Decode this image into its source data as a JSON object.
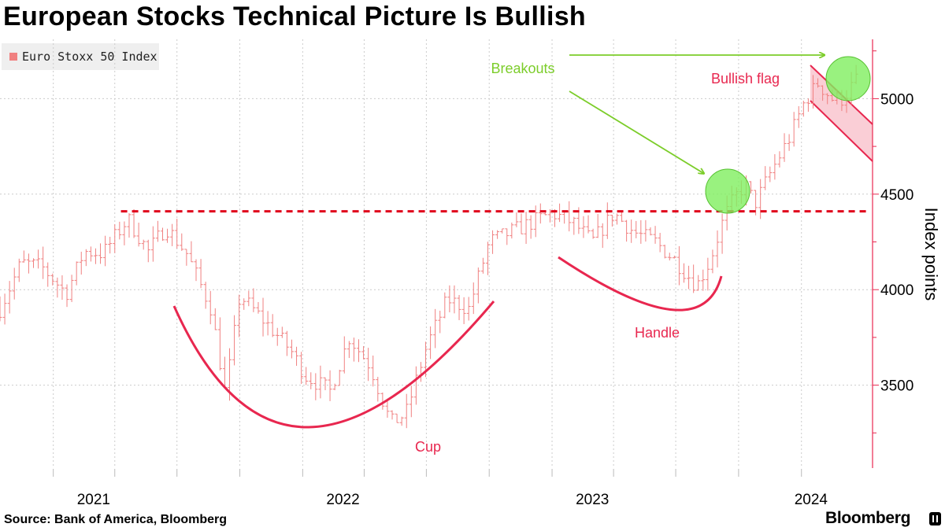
{
  "title": "European Stocks Technical Picture Is Bullish",
  "source": "Source: Bank of America, Bloomberg",
  "brand": "Bloomberg",
  "colors": {
    "bars": "#f08080",
    "pattern": "#e8274f",
    "breakout": "#7ccd2a",
    "circle_fill": "#7fef5f",
    "flag_fill": "#f9c5cf",
    "grid": "#cccccc"
  },
  "chart_data": {
    "type": "bar",
    "style": "ohlc",
    "series": [
      {
        "name": "Euro Stoxx 50 Index"
      }
    ],
    "ylabel": "Index points",
    "ylim": [
      3080,
      5310
    ],
    "yticks": [
      3500,
      4000,
      4500,
      5000
    ],
    "xticks": [
      "2021",
      "2022",
      "2023",
      "2024"
    ],
    "x_range": [
      "2020-10-15",
      "2024-03-22"
    ],
    "grid": "vertical dotted",
    "legend_position": "top-left",
    "price_points": [
      [
        "2020-10-15",
        3900
      ],
      [
        "2020-11-15",
        4140
      ],
      [
        "2020-12-15",
        4120
      ],
      [
        "2021-01-20",
        3980
      ],
      [
        "2021-02-15",
        4200
      ],
      [
        "2021-03-15",
        4190
      ],
      [
        "2021-04-20",
        4370
      ],
      [
        "2021-05-20",
        4200
      ],
      [
        "2021-06-15",
        4330
      ],
      [
        "2021-07-15",
        4190
      ],
      [
        "2021-08-20",
        3900
      ],
      [
        "2021-09-10",
        3450
      ],
      [
        "2021-10-01",
        3970
      ],
      [
        "2021-11-15",
        3800
      ],
      [
        "2021-12-15",
        3680
      ],
      [
        "2022-01-05",
        3550
      ],
      [
        "2022-02-10",
        3470
      ],
      [
        "2022-03-10",
        3750
      ],
      [
        "2022-04-10",
        3600
      ],
      [
        "2022-05-10",
        3300
      ],
      [
        "2022-06-01",
        3350
      ],
      [
        "2022-07-01",
        3700
      ],
      [
        "2022-08-01",
        3950
      ],
      [
        "2022-09-01",
        3900
      ],
      [
        "2022-10-01",
        4250
      ],
      [
        "2022-11-01",
        4300
      ],
      [
        "2022-12-01",
        4350
      ],
      [
        "2023-01-01",
        4400
      ],
      [
        "2023-02-01",
        4350
      ],
      [
        "2023-03-01",
        4250
      ],
      [
        "2023-04-01",
        4400
      ],
      [
        "2023-05-01",
        4300
      ],
      [
        "2023-06-01",
        4250
      ],
      [
        "2023-07-01",
        4150
      ],
      [
        "2023-08-01",
        4020
      ],
      [
        "2023-08-20",
        4150
      ],
      [
        "2023-09-10",
        4380
      ],
      [
        "2023-09-25",
        4480
      ],
      [
        "2023-10-10",
        4550
      ],
      [
        "2023-10-25",
        4450
      ],
      [
        "2023-11-15",
        4600
      ],
      [
        "2023-12-15",
        4800
      ],
      [
        "2024-01-05",
        4980
      ],
      [
        "2024-01-25",
        5080
      ],
      [
        "2024-02-15",
        5000
      ],
      [
        "2024-03-01",
        5000
      ],
      [
        "2024-03-22",
        5100
      ]
    ],
    "resistance_level": 4410,
    "annotations": [
      {
        "type": "label",
        "text": "Breakouts",
        "color": "#7ccd2a"
      },
      {
        "type": "label",
        "text": "Bullish flag",
        "color": "#e8274f"
      },
      {
        "type": "label",
        "text": "Cup",
        "color": "#e8274f"
      },
      {
        "type": "label",
        "text": "Handle",
        "color": "#e8274f"
      },
      {
        "type": "breakout-circle",
        "at": [
          "2023-09-30",
          4510
        ]
      },
      {
        "type": "breakout-circle",
        "at": [
          "2024-03-15",
          5110
        ]
      }
    ]
  }
}
